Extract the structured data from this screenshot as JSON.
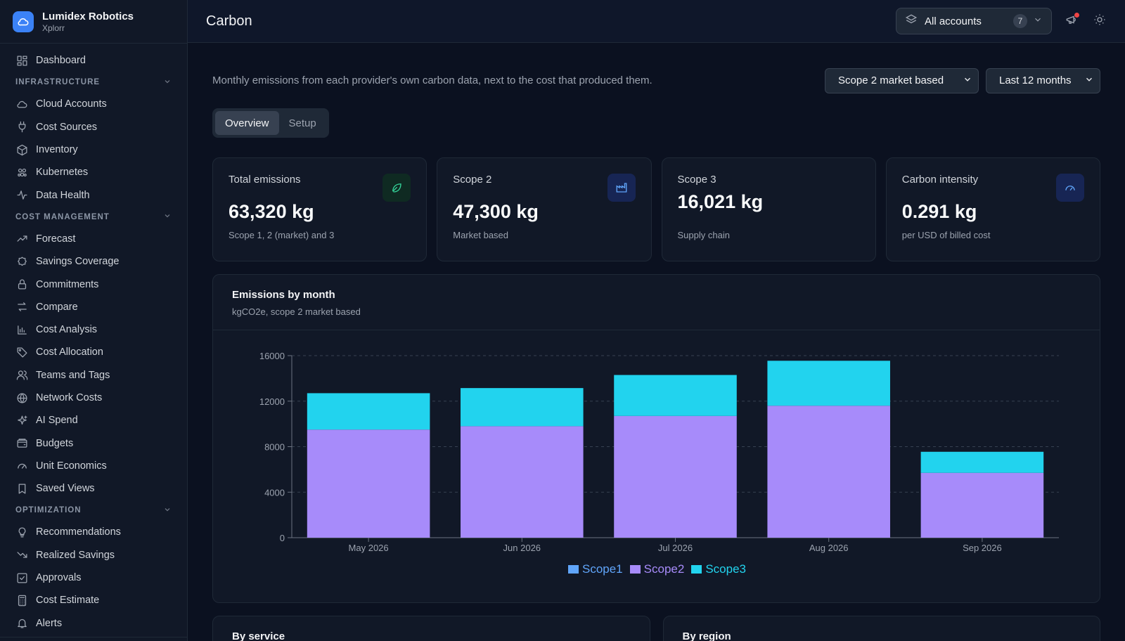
{
  "brand": {
    "name": "Lumidex Robotics",
    "sub": "Xplorr"
  },
  "sidebar": {
    "top_items": [
      {
        "label": "Dashboard",
        "icon": "dashboard-icon"
      }
    ],
    "sections": [
      {
        "title": "INFRASTRUCTURE",
        "items": [
          {
            "label": "Cloud Accounts",
            "icon": "cloud-icon"
          },
          {
            "label": "Cost Sources",
            "icon": "plug-icon"
          },
          {
            "label": "Inventory",
            "icon": "box-icon"
          },
          {
            "label": "Kubernetes",
            "icon": "kubernetes-icon"
          },
          {
            "label": "Data Health",
            "icon": "pulse-icon"
          }
        ]
      },
      {
        "title": "COST MANAGEMENT",
        "items": [
          {
            "label": "Forecast",
            "icon": "trend-up-icon"
          },
          {
            "label": "Savings Coverage",
            "icon": "badge-icon"
          },
          {
            "label": "Commitments",
            "icon": "lock-icon"
          },
          {
            "label": "Compare",
            "icon": "arrows-swap-icon"
          },
          {
            "label": "Cost Analysis",
            "icon": "bar-chart-icon"
          },
          {
            "label": "Cost Allocation",
            "icon": "tag-icon"
          },
          {
            "label": "Teams and Tags",
            "icon": "users-icon"
          },
          {
            "label": "Network Costs",
            "icon": "globe-icon"
          },
          {
            "label": "AI Spend",
            "icon": "sparkle-icon"
          },
          {
            "label": "Budgets",
            "icon": "wallet-icon"
          },
          {
            "label": "Unit Economics",
            "icon": "gauge-icon"
          },
          {
            "label": "Saved Views",
            "icon": "bookmark-icon"
          }
        ]
      },
      {
        "title": "OPTIMIZATION",
        "items": [
          {
            "label": "Recommendations",
            "icon": "lightbulb-icon"
          },
          {
            "label": "Realized Savings",
            "icon": "trend-down-icon"
          },
          {
            "label": "Approvals",
            "icon": "check-square-icon"
          },
          {
            "label": "Cost Estimate",
            "icon": "calculator-icon"
          },
          {
            "label": "Alerts",
            "icon": "bell-icon"
          }
        ]
      }
    ]
  },
  "header": {
    "title": "Carbon",
    "accounts": {
      "label": "All accounts",
      "count": "7"
    }
  },
  "main": {
    "description": "Monthly emissions from each provider's own carbon data, next to the cost that produced them.",
    "scope_select": "Scope 2 market based",
    "range_select": "Last 12 months",
    "tabs": [
      {
        "label": "Overview"
      },
      {
        "label": "Setup"
      }
    ],
    "cards": [
      {
        "title": "Total emissions",
        "value": "63,320 kg",
        "sub": "Scope 1, 2 (market) and 3",
        "icon": "leaf-icon",
        "accent": "#34d399"
      },
      {
        "title": "Scope 2",
        "value": "47,300 kg",
        "sub": "Market based",
        "icon": "factory-icon",
        "accent": "#60a5fa"
      },
      {
        "title": "Scope 3",
        "value": "16,021 kg",
        "sub": "Supply chain",
        "icon": "",
        "accent": ""
      },
      {
        "title": "Carbon intensity",
        "value": "0.291 kg",
        "sub": "per USD of billed cost",
        "icon": "gauge-icon",
        "accent": "#60a5fa"
      }
    ],
    "chart": {
      "title": "Emissions by month",
      "subtitle": "kgCO2e, scope 2 market based"
    },
    "bottom_cards": [
      {
        "title": "By service"
      },
      {
        "title": "By region"
      }
    ]
  },
  "chart_data": {
    "type": "bar",
    "stacked": true,
    "categories": [
      "May 2026",
      "Jun 2026",
      "Jul 2026",
      "Aug 2026",
      "Sep 2026"
    ],
    "series": [
      {
        "name": "Scope1",
        "color": "#60a5fa",
        "values": [
          0,
          0,
          0,
          0,
          0
        ]
      },
      {
        "name": "Scope2",
        "color": "#a78bfa",
        "values": [
          9500,
          9800,
          10700,
          11600,
          5700
        ]
      },
      {
        "name": "Scope3",
        "color": "#22d3ee",
        "values": [
          3200,
          3350,
          3600,
          3950,
          1850
        ]
      }
    ],
    "yticks": [
      0,
      4000,
      8000,
      12000,
      16000
    ],
    "ylim": [
      0,
      16000
    ],
    "grid": true,
    "legend": "bottom"
  }
}
